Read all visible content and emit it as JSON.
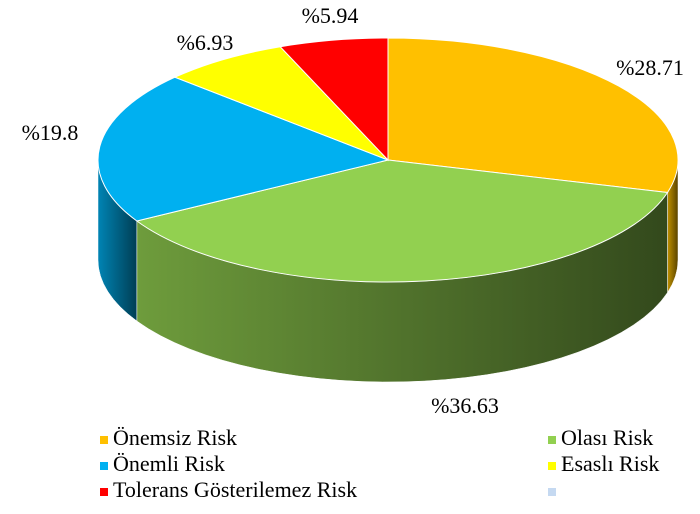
{
  "chart_data": {
    "type": "pie",
    "categories": [
      "Önemsiz Risk",
      "Olası Risk",
      "Önemli Risk",
      "Esaslı Risk",
      "Tolerans Gösterilemez Risk",
      null
    ],
    "values": [
      28.71,
      36.63,
      19.8,
      6.93,
      5.94,
      null
    ],
    "value_labels": [
      "%28.71",
      "%36.63",
      "%19.8",
      "%6.93",
      "%5.94",
      null
    ],
    "colors": [
      "#FFC000",
      "#92D050",
      "#00B0F0",
      "#FFFF00",
      "#FF0000",
      "#C5D9F1"
    ],
    "legend": "bottom"
  }
}
